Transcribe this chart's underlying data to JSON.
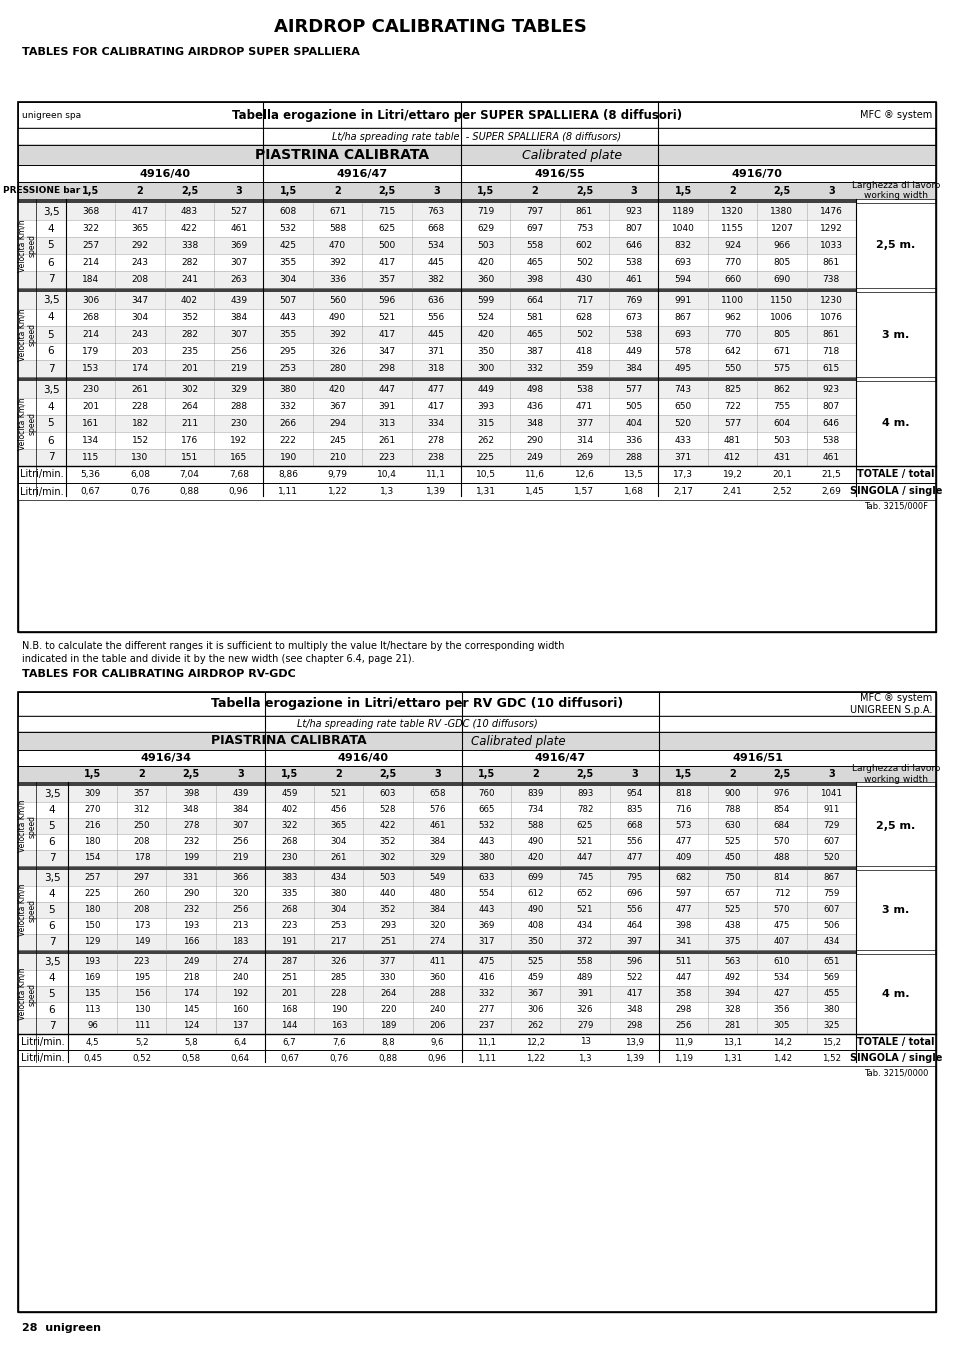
{
  "title": "AIRDROP CALIBRATING TABLES",
  "subtitle1": "TABLES FOR CALIBRATING AIRDROP SUPER SPALLIERA",
  "subtitle2": "TABLES FOR CALIBRATING AIRDROP RV-GDC",
  "table1": {
    "header_bold": "Tabella erogazione in Litri/ettaro per SUPER SPALLIERA (8 diffusori)",
    "header_left": "unigreen spa",
    "header_right": "MFC ® system",
    "subheader": "Lt/ha spreading rate table  - SUPER SPALLIERA (8 diffusors)",
    "piastrina": "PIASTRINA CALIBRATA",
    "calibrated": "Calibrated plate",
    "plates": [
      "4916/40",
      "4916/47",
      "4916/55",
      "4916/70"
    ],
    "col_headers": [
      "1,5",
      "2",
      "2,5",
      "3",
      "1,5",
      "2",
      "2,5",
      "3",
      "1,5",
      "2",
      "2,5",
      "3",
      "1,5",
      "2",
      "2,5",
      "3"
    ],
    "pressione_label": "PRESSIONE bar",
    "right_label": "Larghezza di lavoro\nworking width",
    "section_speeds": [
      "3,5",
      "4",
      "5",
      "6",
      "7"
    ],
    "section_widths": [
      "2,5 m.",
      "3 m.",
      "4 m."
    ],
    "data": [
      [
        [
          368,
          417,
          483,
          527,
          608,
          671,
          715,
          763,
          719,
          797,
          861,
          923,
          1189,
          1320,
          1380,
          1476
        ],
        [
          322,
          365,
          422,
          461,
          532,
          588,
          625,
          668,
          629,
          697,
          753,
          807,
          1040,
          1155,
          1207,
          1292
        ],
        [
          257,
          292,
          338,
          369,
          425,
          470,
          500,
          534,
          503,
          558,
          602,
          646,
          832,
          924,
          966,
          1033
        ],
        [
          214,
          243,
          282,
          307,
          355,
          392,
          417,
          445,
          420,
          465,
          502,
          538,
          693,
          770,
          805,
          861
        ],
        [
          184,
          208,
          241,
          263,
          304,
          336,
          357,
          382,
          360,
          398,
          430,
          461,
          594,
          660,
          690,
          738
        ]
      ],
      [
        [
          306,
          347,
          402,
          439,
          507,
          560,
          596,
          636,
          599,
          664,
          717,
          769,
          991,
          1100,
          1150,
          1230
        ],
        [
          268,
          304,
          352,
          384,
          443,
          490,
          521,
          556,
          524,
          581,
          628,
          673,
          867,
          962,
          1006,
          1076
        ],
        [
          214,
          243,
          282,
          307,
          355,
          392,
          417,
          445,
          420,
          465,
          502,
          538,
          693,
          770,
          805,
          861
        ],
        [
          179,
          203,
          235,
          256,
          295,
          326,
          347,
          371,
          350,
          387,
          418,
          449,
          578,
          642,
          671,
          718
        ],
        [
          153,
          174,
          201,
          219,
          253,
          280,
          298,
          318,
          300,
          332,
          359,
          384,
          495,
          550,
          575,
          615
        ]
      ],
      [
        [
          230,
          261,
          302,
          329,
          380,
          420,
          447,
          477,
          449,
          498,
          538,
          577,
          743,
          825,
          862,
          923
        ],
        [
          201,
          228,
          264,
          288,
          332,
          367,
          391,
          417,
          393,
          436,
          471,
          505,
          650,
          722,
          755,
          807
        ],
        [
          161,
          182,
          211,
          230,
          266,
          294,
          313,
          334,
          315,
          348,
          377,
          404,
          520,
          577,
          604,
          646
        ],
        [
          134,
          152,
          176,
          192,
          222,
          245,
          261,
          278,
          262,
          290,
          314,
          336,
          433,
          481,
          503,
          538
        ],
        [
          115,
          130,
          151,
          165,
          190,
          210,
          223,
          238,
          225,
          249,
          269,
          288,
          371,
          412,
          431,
          461
        ]
      ]
    ],
    "totale_values": [
      "5,36",
      "6,08",
      "7,04",
      "7,68",
      "8,86",
      "9,79",
      "10,4",
      "11,1",
      "10,5",
      "11,6",
      "12,6",
      "13,5",
      "17,3",
      "19,2",
      "20,1",
      "21,5"
    ],
    "singola_values": [
      "0,67",
      "0,76",
      "0,88",
      "0,96",
      "1,11",
      "1,22",
      "1,3",
      "1,39",
      "1,31",
      "1,45",
      "1,57",
      "1,68",
      "2,17",
      "2,41",
      "2,52",
      "2,69"
    ],
    "tab_number": "Tab. 3215/000F"
  },
  "note_line1": "N.B. to calculate the different ranges it is sufficient to multiply the value lt/hectare by the corresponding width",
  "note_line2": "indicated in the table and divide it by the new width (see chapter 6.4, page 21).",
  "table2": {
    "header_bold": "Tabella erogazione in Litri/ettaro per RV GDC (10 diffusori)",
    "header_right1": "MFC ® system",
    "header_right2": "UNIGREEN S.p.A.",
    "subheader": "Lt/ha spreading rate table RV -GDC (10 diffusors)",
    "piastrina": "PIASTRINA CALIBRATA",
    "calibrated": "Calibrated plate",
    "plates": [
      "4916/34",
      "4916/40",
      "4916/47",
      "4916/51"
    ],
    "col_headers": [
      "1,5",
      "2",
      "2,5",
      "3",
      "1,5",
      "2",
      "2,5",
      "3",
      "1,5",
      "2",
      "2,5",
      "3",
      "1,5",
      "2",
      "2,5",
      "3"
    ],
    "pressione_label": "PRESSIONE bar",
    "right_label": "Larghezza di lavoro\nworking width",
    "section_speeds": [
      "3,5",
      "4",
      "5",
      "6",
      "7"
    ],
    "section_widths": [
      "2,5 m.",
      "3 m.",
      "4 m."
    ],
    "data": [
      [
        [
          309,
          357,
          398,
          439,
          459,
          521,
          603,
          658,
          760,
          839,
          893,
          954,
          818,
          900,
          976,
          1041
        ],
        [
          270,
          312,
          348,
          384,
          402,
          456,
          528,
          576,
          665,
          734,
          782,
          835,
          716,
          788,
          854,
          911
        ],
        [
          216,
          250,
          278,
          307,
          322,
          365,
          422,
          461,
          532,
          588,
          625,
          668,
          573,
          630,
          684,
          729
        ],
        [
          180,
          208,
          232,
          256,
          268,
          304,
          352,
          384,
          443,
          490,
          521,
          556,
          477,
          525,
          570,
          607
        ],
        [
          154,
          178,
          199,
          219,
          230,
          261,
          302,
          329,
          380,
          420,
          447,
          477,
          409,
          450,
          488,
          520
        ]
      ],
      [
        [
          257,
          297,
          331,
          366,
          383,
          434,
          503,
          549,
          633,
          699,
          745,
          795,
          682,
          750,
          814,
          867
        ],
        [
          225,
          260,
          290,
          320,
          335,
          380,
          440,
          480,
          554,
          612,
          652,
          696,
          597,
          657,
          712,
          759
        ],
        [
          180,
          208,
          232,
          256,
          268,
          304,
          352,
          384,
          443,
          490,
          521,
          556,
          477,
          525,
          570,
          607
        ],
        [
          150,
          173,
          193,
          213,
          223,
          253,
          293,
          320,
          369,
          408,
          434,
          464,
          398,
          438,
          475,
          506
        ],
        [
          129,
          149,
          166,
          183,
          191,
          217,
          251,
          274,
          317,
          350,
          372,
          397,
          341,
          375,
          407,
          434
        ]
      ],
      [
        [
          193,
          223,
          249,
          274,
          287,
          326,
          377,
          411,
          475,
          525,
          558,
          596,
          511,
          563,
          610,
          651
        ],
        [
          169,
          195,
          218,
          240,
          251,
          285,
          330,
          360,
          416,
          459,
          489,
          522,
          447,
          492,
          534,
          569
        ],
        [
          135,
          156,
          174,
          192,
          201,
          228,
          264,
          288,
          332,
          367,
          391,
          417,
          358,
          394,
          427,
          455
        ],
        [
          113,
          130,
          145,
          160,
          168,
          190,
          220,
          240,
          277,
          306,
          326,
          348,
          298,
          328,
          356,
          380
        ],
        [
          96,
          111,
          124,
          137,
          144,
          163,
          189,
          206,
          237,
          262,
          279,
          298,
          256,
          281,
          305,
          325
        ]
      ]
    ],
    "totale_values": [
      "4,5",
      "5,2",
      "5,8",
      "6,4",
      "6,7",
      "7,6",
      "8,8",
      "9,6",
      "11,1",
      "12,2",
      "13",
      "13,9",
      "11,9",
      "13,1",
      "14,2",
      "15,2"
    ],
    "singola_values": [
      "0,45",
      "0,52",
      "0,58",
      "0,64",
      "0,67",
      "0,76",
      "0,88",
      "0,96",
      "1,11",
      "1,22",
      "1,3",
      "1,39",
      "1,19",
      "1,31",
      "1,42",
      "1,52"
    ],
    "tab_number": "Tab. 3215/0000"
  },
  "page_label": "28  unigreen"
}
